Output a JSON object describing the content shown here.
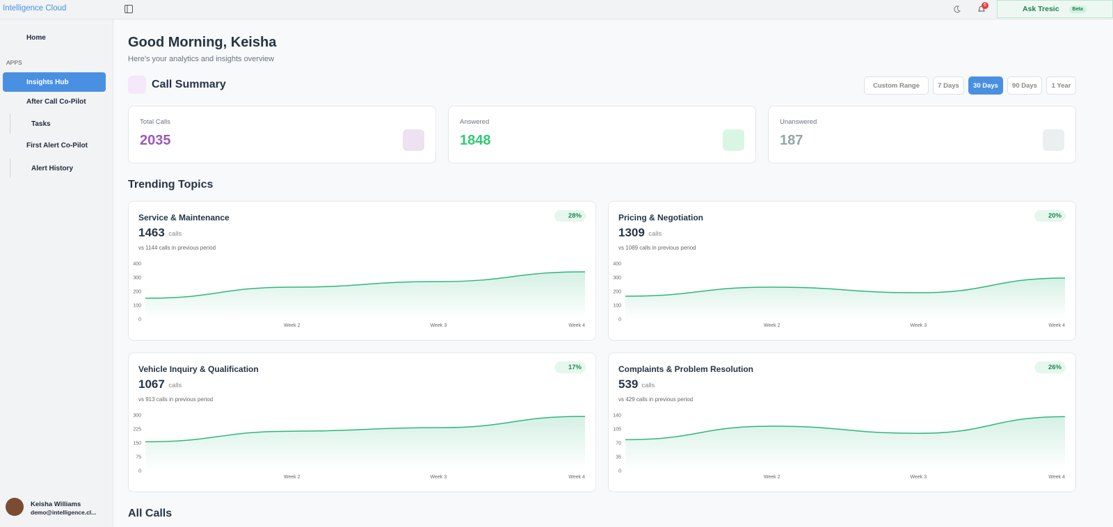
{
  "header": {
    "brand": "Intelligence Cloud",
    "notifications": 6,
    "ask": "Ask Tresic",
    "beta": "Beta"
  },
  "sidebar": {
    "home": "Home",
    "section": "APPS",
    "items": [
      "Insights Hub",
      "After Call Co-Pilot",
      "Tasks",
      "First Alert Co-Pilot",
      "Alert History"
    ],
    "active": 0,
    "user_name": "Keisha Williams",
    "user_email": "demo@intelligence.cl..."
  },
  "greeting": "Good Morning, Keisha",
  "subtitle": "Here's your analytics and insights overview",
  "call_summary": {
    "title": "Call Summary",
    "ranges": [
      "Custom Range",
      "7 Days",
      "30 Days",
      "90 Days",
      "1 Year"
    ],
    "active_range": 2,
    "stats": [
      {
        "label": "Total Calls",
        "value": 2035,
        "color": "#9b59b6"
      },
      {
        "label": "Answered",
        "value": 1848,
        "color": "#2ecc71"
      },
      {
        "label": "Unanswered",
        "value": 187,
        "color": "#95a5a6"
      }
    ]
  },
  "trending": {
    "title": "Trending Topics",
    "topics": [
      {
        "name": "Service & Maintenance",
        "calls": 1463,
        "unit": "calls",
        "change": "28%",
        "previous": "vs 1144 calls in previous period",
        "chart": {
          "type": "area",
          "categories": [
            null,
            "Week 2",
            "Week 3",
            "Week 4"
          ],
          "values": [
            150,
            230,
            270,
            340
          ],
          "ylim": [
            0,
            400
          ],
          "yticks": [
            0,
            100,
            200,
            300,
            400
          ],
          "color": "#2eb67d"
        }
      },
      {
        "name": "Pricing & Negotiation",
        "calls": 1309,
        "unit": "calls",
        "change": "20%",
        "previous": "vs 1089 calls in previous period",
        "chart": {
          "type": "area",
          "categories": [
            null,
            "Week 2",
            "Week 3",
            "Week 4"
          ],
          "values": [
            165,
            230,
            190,
            295
          ],
          "ylim": [
            0,
            400
          ],
          "yticks": [
            0,
            100,
            200,
            300,
            400
          ],
          "color": "#2eb67d"
        }
      },
      {
        "name": "Vehicle Inquiry & Qualification",
        "calls": 1067,
        "unit": "calls",
        "change": "17%",
        "previous": "vs 913 calls in previous period",
        "chart": {
          "type": "area",
          "categories": [
            null,
            "Week 2",
            "Week 3",
            "Week 4"
          ],
          "values": [
            156,
            213,
            232,
            293
          ],
          "ylim": [
            0,
            300
          ],
          "yticks": [
            0,
            75,
            150,
            225,
            300
          ],
          "color": "#2eb67d"
        }
      },
      {
        "name": "Complaints & Problem Resolution",
        "calls": 539,
        "unit": "calls",
        "change": "26%",
        "previous": "vs 429 calls in previous period",
        "chart": {
          "type": "area",
          "categories": [
            null,
            "Week 2",
            "Week 3",
            "Week 4"
          ],
          "values": [
            78,
            112,
            94,
            136
          ],
          "ylim": [
            0,
            140
          ],
          "yticks": [
            0,
            35,
            70,
            105,
            140
          ],
          "color": "#2eb67d"
        }
      }
    ]
  },
  "all_calls": {
    "title": "All Calls"
  }
}
